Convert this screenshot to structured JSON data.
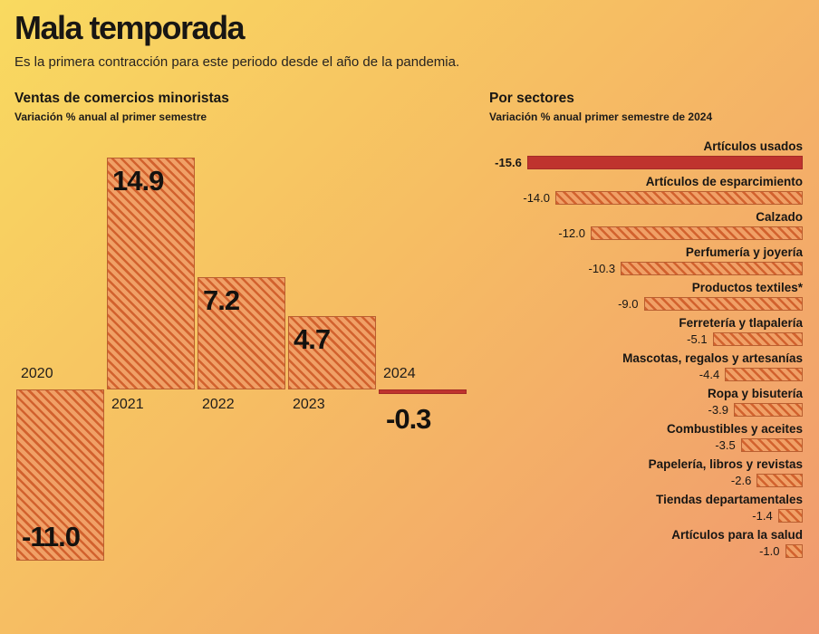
{
  "page": {
    "title": "Mala temporada",
    "subtitle": "Es la primera contracción para este periodo desde el año de la pandemia."
  },
  "colors": {
    "background_top": "#f9da60",
    "background_bottom": "#f0996f",
    "bar_fill": "#f0a066",
    "hatch_line": "#d2622e",
    "bar_border": "#b95f31",
    "highlight_red": "#bf332e",
    "text": "#181614"
  },
  "chart_data": [
    {
      "type": "bar",
      "orientation": "vertical",
      "title": "Ventas de comercios minoristas",
      "subtitle": "Variación % anual al primer semestre",
      "categories": [
        "2020",
        "2021",
        "2022",
        "2023",
        "2024"
      ],
      "values": [
        -11.0,
        14.9,
        7.2,
        4.7,
        -0.3
      ],
      "value_labels": [
        "-11.0",
        "14.9",
        "7.2",
        "4.7",
        "-0.3"
      ],
      "highlight_category": "2024",
      "ylim": [
        -12,
        16
      ],
      "grid": false,
      "legend": "none"
    },
    {
      "type": "bar",
      "orientation": "horizontal",
      "title": "Por sectores",
      "subtitle": "Variación % anual primer semestre de 2024",
      "categories": [
        "Artículos usados",
        "Artículos de esparcimiento",
        "Calzado",
        "Perfumería y joyería",
        "Productos textiles*",
        "Ferretería y tlapalería",
        "Mascotas, regalos y artesanías",
        "Ropa y bisutería",
        "Combustibles y aceites",
        "Papelería, libros y revistas",
        "Tiendas departamentales",
        "Artículos para la salud"
      ],
      "values": [
        -15.6,
        -14.0,
        -12.0,
        -10.3,
        -9.0,
        -5.1,
        -4.4,
        -3.9,
        -3.5,
        -2.6,
        -1.4,
        -1.0
      ],
      "value_labels": [
        "-15.6",
        "-14.0",
        "-12.0",
        "-10.3",
        "-9.0",
        "-5.1",
        "-4.4",
        "-3.9",
        "-3.5",
        "-2.6",
        "-1.4",
        "-1.0"
      ],
      "highlight_category": "Artículos usados",
      "xlim": [
        -16,
        0
      ],
      "grid": false,
      "legend": "none"
    }
  ]
}
